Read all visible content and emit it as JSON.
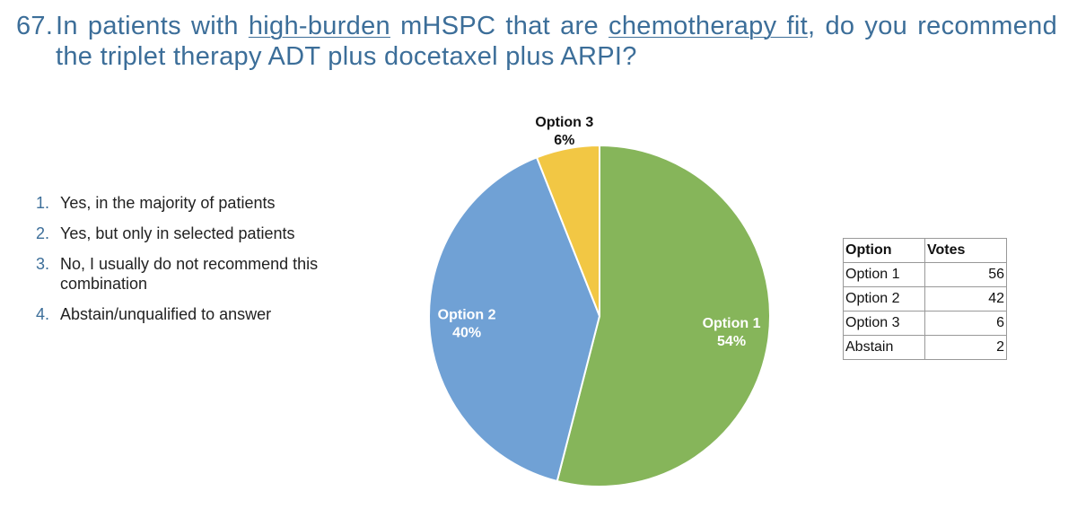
{
  "title": {
    "number": "67.",
    "parts": [
      "In patients with ",
      "high-burden",
      " mHSPC that are ",
      "chemotherapy fit",
      ", do you recommend the triplet therapy ADT plus docetaxel plus ARPI?"
    ]
  },
  "options": [
    {
      "number": "1.",
      "text": "Yes, in the majority of patients"
    },
    {
      "number": "2.",
      "text": "Yes, but only in selected patients"
    },
    {
      "number": "3.",
      "text": "No, I usually do not recommend this combination"
    },
    {
      "number": "4.",
      "text": "Abstain/unqualified to answer"
    }
  ],
  "chart_data": {
    "type": "pie",
    "categories": [
      "Option 1",
      "Option 2",
      "Option 3"
    ],
    "values": [
      54,
      40,
      6
    ],
    "value_labels": [
      "54%",
      "40%",
      "6%"
    ],
    "colors": [
      "#86b55a",
      "#70a1d5",
      "#f2c744"
    ]
  },
  "table": {
    "header": [
      "Option",
      "Votes"
    ],
    "rows": [
      [
        "Option 1",
        "56"
      ],
      [
        "Option 2",
        "42"
      ],
      [
        "Option 3",
        "6"
      ],
      [
        "Abstain",
        "2"
      ]
    ]
  }
}
